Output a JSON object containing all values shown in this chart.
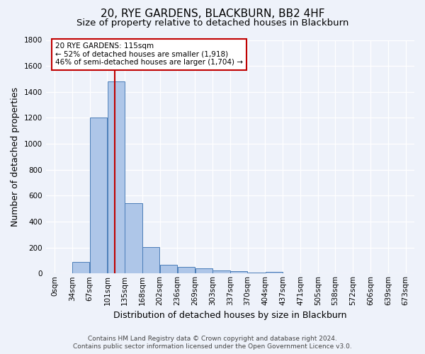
{
  "title": "20, RYE GARDENS, BLACKBURN, BB2 4HF",
  "subtitle": "Size of property relative to detached houses in Blackburn",
  "xlabel": "Distribution of detached houses by size in Blackburn",
  "ylabel": "Number of detached properties",
  "footer_line1": "Contains HM Land Registry data © Crown copyright and database right 2024.",
  "footer_line2": "Contains public sector information licensed under the Open Government Licence v3.0.",
  "bin_labels": [
    "0sqm",
    "34sqm",
    "67sqm",
    "101sqm",
    "135sqm",
    "168sqm",
    "202sqm",
    "236sqm",
    "269sqm",
    "303sqm",
    "337sqm",
    "370sqm",
    "404sqm",
    "437sqm",
    "471sqm",
    "505sqm",
    "538sqm",
    "572sqm",
    "606sqm",
    "639sqm",
    "673sqm"
  ],
  "bar_values": [
    0,
    90,
    1200,
    1480,
    540,
    205,
    65,
    50,
    40,
    25,
    20,
    5,
    13,
    0,
    0,
    0,
    0,
    0,
    0,
    0
  ],
  "bar_color": "#aec6e8",
  "bar_edge_color": "#4a7db8",
  "ylim": [
    0,
    1800
  ],
  "yticks": [
    0,
    200,
    400,
    600,
    800,
    1000,
    1200,
    1400,
    1600,
    1800
  ],
  "property_line_x": 115,
  "property_line_color": "#c00000",
  "annotation_title": "20 RYE GARDENS: 115sqm",
  "annotation_line1": "← 52% of detached houses are smaller (1,918)",
  "annotation_line2": "46% of semi-detached houses are larger (1,704) →",
  "annotation_box_color": "#ffffff",
  "annotation_box_edge": "#c00000",
  "bin_width": 33.5,
  "background_color": "#eef2fa",
  "grid_color": "#ffffff",
  "title_fontsize": 11,
  "subtitle_fontsize": 9.5,
  "axis_label_fontsize": 9,
  "tick_fontsize": 7.5,
  "footer_fontsize": 6.5,
  "annotation_fontsize": 7.5
}
